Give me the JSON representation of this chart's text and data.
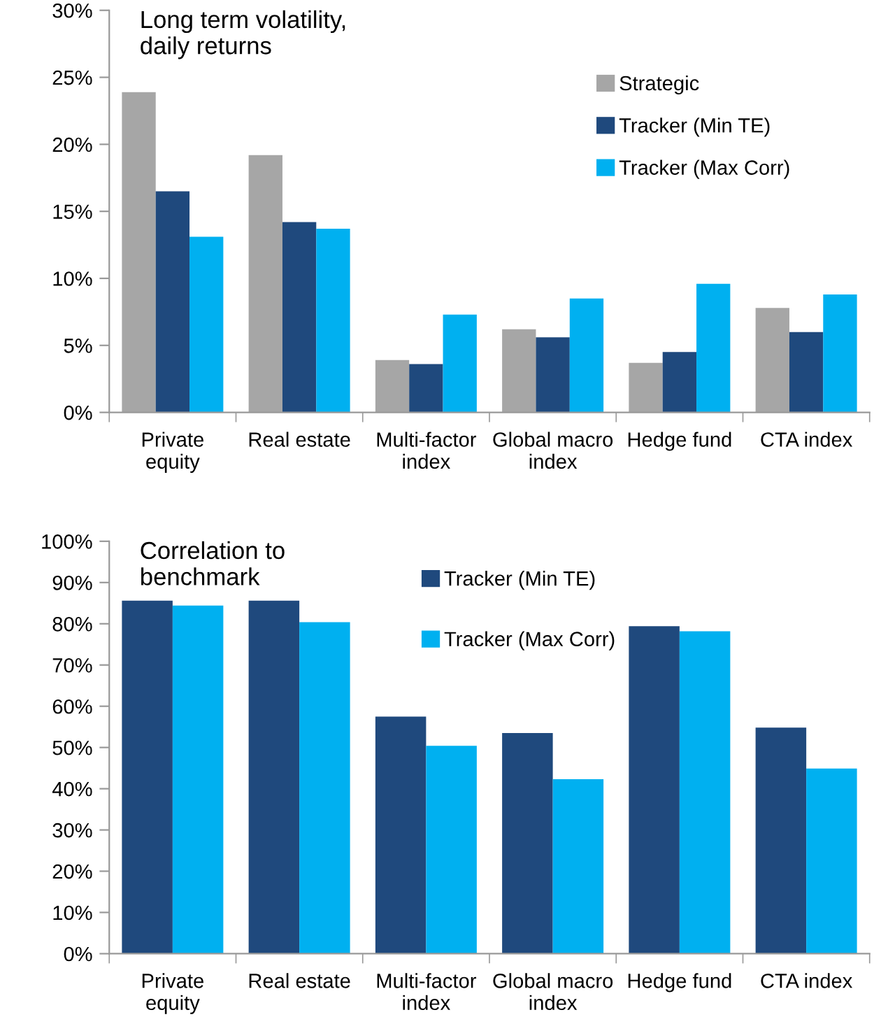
{
  "chart_data": [
    {
      "type": "bar",
      "title": "Long term volatility,\ndaily returns",
      "categories": [
        "Private\nequity",
        "Real estate",
        "Multi-factor\nindex",
        "Global macro\nindex",
        "Hedge fund",
        "CTA index"
      ],
      "series": [
        {
          "name": "Strategic",
          "color": "#a6a6a6",
          "values": [
            23.9,
            19.2,
            3.9,
            6.2,
            3.7,
            7.8
          ]
        },
        {
          "name": "Tracker (Min TE)",
          "color": "#1f497d",
          "values": [
            16.5,
            14.2,
            3.6,
            5.6,
            4.5,
            6.0
          ]
        },
        {
          "name": "Tracker (Max Corr)",
          "color": "#00b0f0",
          "values": [
            13.1,
            13.7,
            7.3,
            8.5,
            9.6,
            8.8
          ]
        }
      ],
      "ylim": [
        0,
        30
      ],
      "yticks": [
        {
          "value": 0,
          "label": "0%"
        },
        {
          "value": 5,
          "label": "5%"
        },
        {
          "value": 10,
          "label": "10%"
        },
        {
          "value": 15,
          "label": "15%"
        },
        {
          "value": 20,
          "label": "20%"
        },
        {
          "value": 25,
          "label": "25%"
        },
        {
          "value": 30,
          "label": "30%"
        }
      ],
      "grid": false,
      "legend": "top right"
    },
    {
      "type": "bar",
      "title": "Correlation to\nbenchmark",
      "categories": [
        "Private\nequity",
        "Real estate",
        "Multi-factor\nindex",
        "Global macro\nindex",
        "Hedge fund",
        "CTA index"
      ],
      "series": [
        {
          "name": "Tracker (Min TE)",
          "color": "#1f497d",
          "values": [
            85.6,
            85.6,
            57.5,
            53.5,
            79.4,
            54.8
          ]
        },
        {
          "name": "Tracker (Max Corr)",
          "color": "#00b0f0",
          "values": [
            84.4,
            80.4,
            50.4,
            42.3,
            78.2,
            44.9
          ]
        }
      ],
      "ylim": [
        0,
        100
      ],
      "yticks": [
        {
          "value": 0,
          "label": "0%"
        },
        {
          "value": 10,
          "label": "10%"
        },
        {
          "value": 20,
          "label": "20%"
        },
        {
          "value": 30,
          "label": "30%"
        },
        {
          "value": 40,
          "label": "40%"
        },
        {
          "value": 50,
          "label": "50%"
        },
        {
          "value": 60,
          "label": "60%"
        },
        {
          "value": 70,
          "label": "70%"
        },
        {
          "value": 80,
          "label": "80%"
        },
        {
          "value": 90,
          "label": "90%"
        },
        {
          "value": 100,
          "label": "100%"
        }
      ],
      "grid": false,
      "legend": "top"
    }
  ]
}
